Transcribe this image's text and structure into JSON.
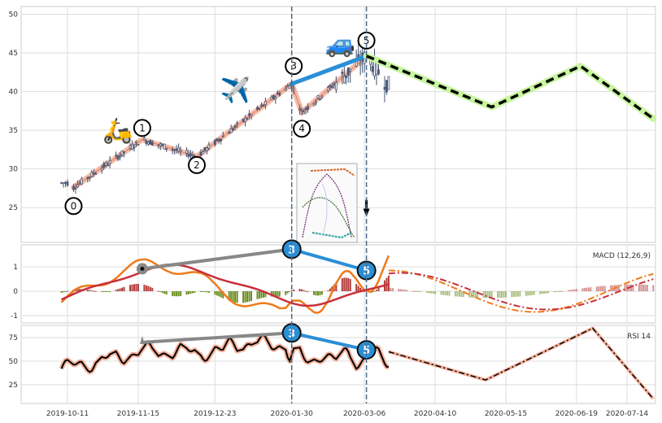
{
  "chart_data": {
    "type": "candlestick",
    "x_ticks": [
      "2019-10-11",
      "2019-11-15",
      "2019-12-23",
      "2020-01-30",
      "2020-03-06",
      "2020-04-10",
      "2020-05-15",
      "2020-06-19",
      "2020-07-14"
    ],
    "x_tick_dates": [
      "2019-10-11",
      "2019-11-15",
      "2019-12-23",
      "2020-01-30",
      "2020-03-06",
      "2020-04-10",
      "2020-05-15",
      "2020-06-19",
      "2020-07-14"
    ],
    "vertical_markers": [
      "2020-01-30",
      "2020-03-07"
    ],
    "price_panel": {
      "ylim": [
        20.5,
        51
      ],
      "yticks": [
        25,
        30,
        35,
        40,
        45,
        50
      ],
      "candles_start": "2019-10-08",
      "candles_end": "2020-03-18",
      "waves": [
        {
          "label": "0",
          "date": "2019-10-14",
          "price": 27.6
        },
        {
          "label": "1",
          "date": "2019-11-17",
          "price": 33.8
        },
        {
          "label": "2",
          "date": "2019-12-14",
          "price": 31.6
        },
        {
          "label": "3",
          "date": "2020-01-30",
          "price": 41.0
        },
        {
          "label": "4",
          "date": "2020-02-04",
          "price": 37.3
        },
        {
          "label": "5",
          "date": "2020-03-07",
          "price": 44.6
        }
      ],
      "wave_label_positions": [
        {
          "label": "0",
          "date": "2019-10-14",
          "price": 25.2
        },
        {
          "label": "1",
          "date": "2019-11-17",
          "price": 35.3
        },
        {
          "label": "2",
          "date": "2019-12-14",
          "price": 30.5
        },
        {
          "label": "3",
          "date": "2020-01-31",
          "price": 43.3
        },
        {
          "label": "4",
          "date": "2020-02-04",
          "price": 35.2
        },
        {
          "label": "5",
          "date": "2020-03-07",
          "price": 46.6
        }
      ],
      "trend_3_5": [
        {
          "date": "2020-01-30",
          "price": 41.0
        },
        {
          "date": "2020-03-07",
          "price": 44.6
        }
      ],
      "projection": [
        {
          "date": "2020-03-07",
          "price": 44.6
        },
        {
          "date": "2020-05-08",
          "price": 38.0
        },
        {
          "date": "2020-06-21",
          "price": 43.3
        },
        {
          "date": "2020-07-27",
          "price": 36.5
        }
      ],
      "icons": [
        {
          "name": "scooter",
          "glyph": "🛵",
          "date": "2019-11-05",
          "price": 34.8
        },
        {
          "name": "airplane",
          "glyph": "✈️",
          "date": "2020-01-02",
          "price": 40.0
        },
        {
          "name": "car",
          "glyph": "🚙",
          "date": "2020-02-23",
          "price": 46.0
        }
      ],
      "arrow": {
        "date": "2020-03-07",
        "from_price": 26.0,
        "to_price": 21.5
      }
    },
    "macd_panel": {
      "label": "MACD (12,26,9)",
      "ylim": [
        -1.3,
        1.9
      ],
      "yticks": [
        -1,
        0,
        1
      ],
      "badges": [
        {
          "label": "3",
          "date": "2020-01-30",
          "value": 1.72
        },
        {
          "label": "5",
          "date": "2020-03-07",
          "value": 0.85
        }
      ],
      "divergence_line": [
        {
          "date": "2019-11-17",
          "value": 0.92
        },
        {
          "date": "2020-01-30",
          "value": 1.72
        }
      ],
      "divergence_dot": {
        "date": "2019-11-17",
        "value": 0.92
      }
    },
    "rsi_panel": {
      "label": "RSI 14",
      "ylim": [
        5,
        88
      ],
      "yticks": [
        25,
        50,
        75
      ],
      "badges": [
        {
          "label": "3",
          "date": "2020-01-30",
          "value": 80
        },
        {
          "label": "5",
          "date": "2020-03-07",
          "value": 62
        }
      ],
      "divergence_line": [
        {
          "date": "2019-11-17",
          "value": 70
        },
        {
          "date": "2020-01-30",
          "value": 80
        }
      ],
      "projection": [
        {
          "date": "2020-03-18",
          "value": 60
        },
        {
          "date": "2020-05-05",
          "value": 30
        },
        {
          "date": "2020-06-27",
          "value": 85
        },
        {
          "date": "2020-07-27",
          "value": 10
        }
      ]
    }
  }
}
